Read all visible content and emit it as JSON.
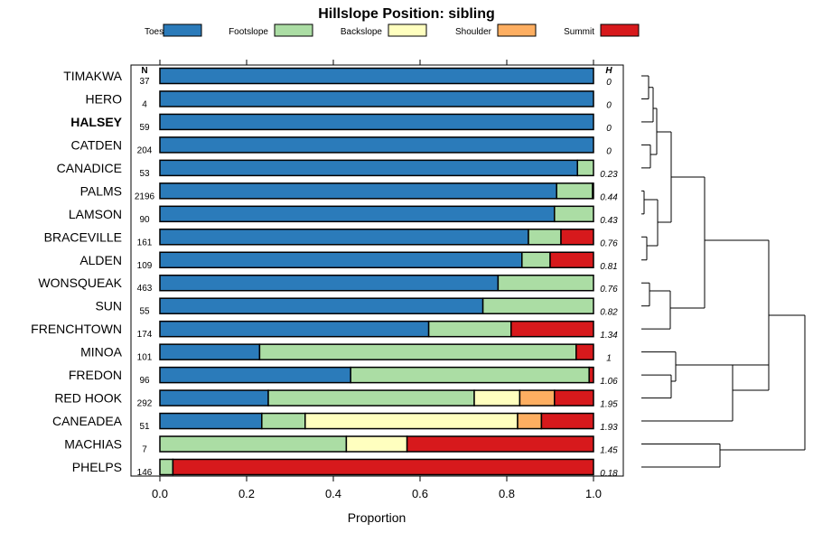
{
  "chart_data": {
    "type": "bar",
    "stacked": true,
    "orientation": "horizontal",
    "title": "Hillslope Position: sibling",
    "xlabel": "Proportion",
    "ylabel": "",
    "xlim": [
      0,
      1
    ],
    "x_ticks": [
      "0.0",
      "0.2",
      "0.4",
      "0.6",
      "0.8",
      "1.0"
    ],
    "n_header": "N",
    "h_header": "H",
    "legend_position": "top",
    "bold_category": "HALSEY",
    "categories": [
      "TIMAKWA",
      "HERO",
      "HALSEY",
      "CATDEN",
      "CANADICE",
      "PALMS",
      "LAMSON",
      "BRACEVILLE",
      "ALDEN",
      "WONSQUEAK",
      "SUN",
      "FRENCHTOWN",
      "MINOA",
      "FREDON",
      "RED HOOK",
      "CANEADEA",
      "MACHIAS",
      "PHELPS"
    ],
    "n": [
      "37",
      "4",
      "59",
      "204",
      "53",
      "2196",
      "90",
      "161",
      "109",
      "463",
      "55",
      "174",
      "101",
      "96",
      "292",
      "51",
      "7",
      "146"
    ],
    "h": [
      "0",
      "0",
      "0",
      "0",
      "0.23",
      "0.44",
      "0.43",
      "0.76",
      "0.81",
      "0.76",
      "0.82",
      "1.34",
      "1",
      "1.06",
      "1.95",
      "1.93",
      "1.45",
      "0.18"
    ],
    "series": [
      {
        "name": "Toeslope",
        "color": "#2B7BBA",
        "values": [
          1.0,
          1.0,
          1.0,
          1.0,
          0.963,
          0.915,
          0.91,
          0.85,
          0.835,
          0.78,
          0.745,
          0.62,
          0.23,
          0.44,
          0.25,
          0.235,
          0.0,
          0.0
        ]
      },
      {
        "name": "Footslope",
        "color": "#ABDDA4",
        "values": [
          0.0,
          0.0,
          0.0,
          0.0,
          0.037,
          0.083,
          0.09,
          0.075,
          0.065,
          0.22,
          0.255,
          0.19,
          0.73,
          0.55,
          0.475,
          0.1,
          0.43,
          0.03
        ]
      },
      {
        "name": "Backslope",
        "color": "#FFFFBF",
        "values": [
          0.0,
          0.0,
          0.0,
          0.0,
          0.0,
          0.0,
          0.0,
          0.0,
          0.0,
          0.0,
          0.0,
          0.0,
          0.0,
          0.0,
          0.105,
          0.49,
          0.14,
          0.0
        ]
      },
      {
        "name": "Shoulder",
        "color": "#FDAE61",
        "values": [
          0.0,
          0.0,
          0.0,
          0.0,
          0.0,
          0.0,
          0.0,
          0.0,
          0.0,
          0.0,
          0.0,
          0.0,
          0.0,
          0.0,
          0.08,
          0.055,
          0.0,
          0.0
        ]
      },
      {
        "name": "Summit",
        "color": "#D7191C",
        "values": [
          0.0,
          0.0,
          0.0,
          0.0,
          0.0,
          0.002,
          0.0,
          0.075,
          0.1,
          0.0,
          0.0,
          0.19,
          0.04,
          0.01,
          0.09,
          0.12,
          0.43,
          0.97
        ]
      }
    ]
  }
}
